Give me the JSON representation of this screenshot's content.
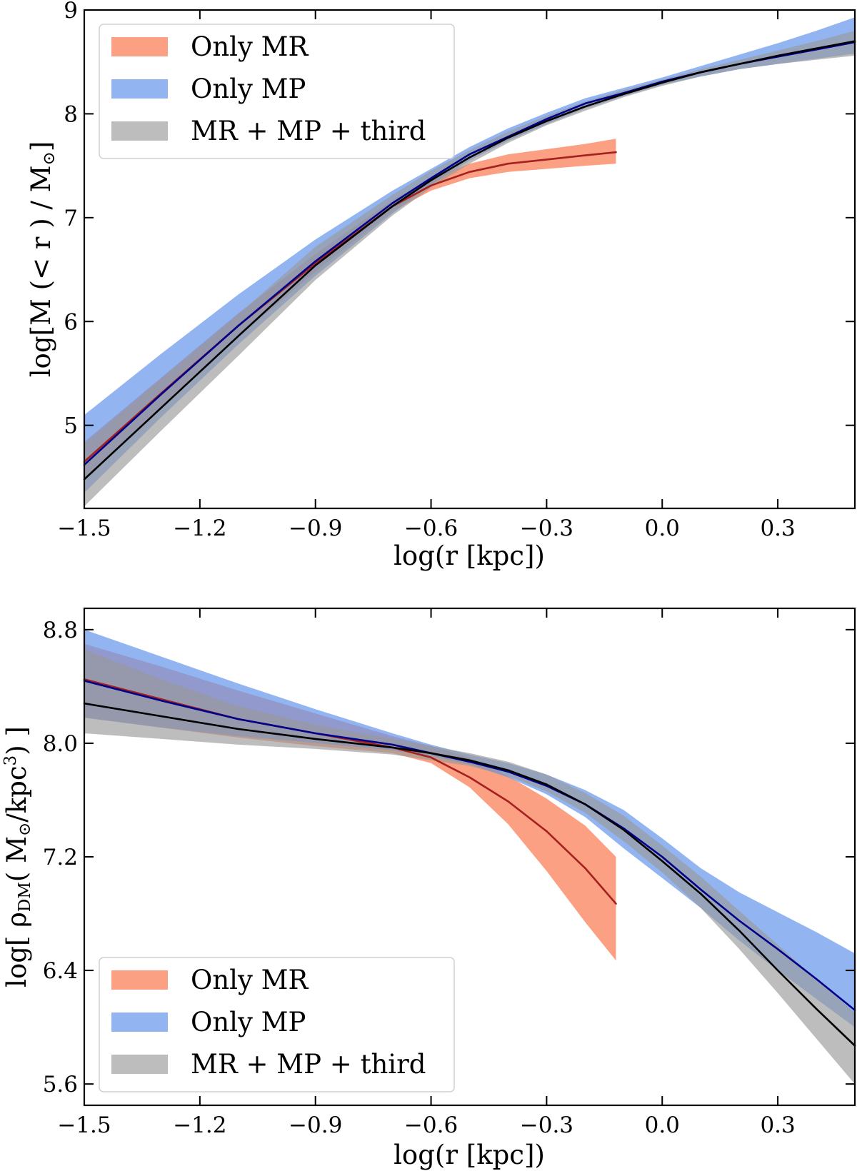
{
  "chart_data": [
    {
      "type": "area",
      "title": "",
      "xlabel": "log(r [kpc])",
      "ylabel": "log[M (< r ) / M⊙]",
      "ylabel_parts": {
        "prefix": "log[M (< r ) / M",
        "sun": "⊙",
        "suffix": "]"
      },
      "xlim": [
        -1.5,
        0.5
      ],
      "ylim": [
        4.2,
        9.0
      ],
      "x_ticks": [
        -1.5,
        -1.2,
        -0.9,
        -0.6,
        -0.3,
        0.0,
        0.3
      ],
      "x_tick_labels": [
        "−1.5",
        "−1.2",
        "−0.9",
        "−0.6",
        "−0.3",
        "0.0",
        "0.3"
      ],
      "y_ticks": [
        5,
        6,
        7,
        8,
        9
      ],
      "y_tick_labels": [
        "5",
        "6",
        "7",
        "8",
        "9"
      ],
      "legend_position": "upper-left",
      "legend": [
        "Only MR",
        "Only MP",
        "MR + MP + third"
      ],
      "series": [
        {
          "name": "Only MR",
          "band_color": "#fa8058",
          "band_alpha": 0.75,
          "line_color": "#a52020",
          "x": [
            -1.5,
            -1.3,
            -1.1,
            -0.9,
            -0.7,
            -0.6,
            -0.5,
            -0.4,
            -0.3,
            -0.2,
            -0.12
          ],
          "y": [
            4.65,
            5.31,
            5.96,
            6.56,
            7.11,
            7.31,
            7.44,
            7.52,
            7.56,
            7.6,
            7.63
          ],
          "lower": [
            4.48,
            5.17,
            5.85,
            6.48,
            7.06,
            7.26,
            7.38,
            7.44,
            7.47,
            7.5,
            7.52
          ],
          "upper": [
            4.84,
            5.46,
            6.08,
            6.65,
            7.17,
            7.38,
            7.52,
            7.61,
            7.66,
            7.71,
            7.76
          ]
        },
        {
          "name": "Only MP",
          "band_color": "#6495ed",
          "band_alpha": 0.7,
          "line_color": "#00008b",
          "x": [
            -1.5,
            -1.3,
            -1.1,
            -0.9,
            -0.7,
            -0.6,
            -0.5,
            -0.4,
            -0.3,
            -0.2,
            -0.1,
            0.0,
            0.1,
            0.2,
            0.3,
            0.4,
            0.5
          ],
          "y": [
            4.62,
            5.3,
            5.96,
            6.58,
            7.14,
            7.38,
            7.61,
            7.78,
            7.95,
            8.1,
            8.2,
            8.31,
            8.4,
            8.48,
            8.55,
            8.62,
            8.69
          ],
          "lower": [
            4.35,
            5.08,
            5.78,
            6.44,
            7.04,
            7.32,
            7.55,
            7.74,
            7.9,
            8.05,
            8.17,
            8.28,
            8.36,
            8.43,
            8.48,
            8.53,
            8.58
          ],
          "upper": [
            5.1,
            5.69,
            6.26,
            6.79,
            7.26,
            7.47,
            7.68,
            7.86,
            8.01,
            8.15,
            8.25,
            8.35,
            8.46,
            8.57,
            8.68,
            8.8,
            8.93
          ]
        },
        {
          "name": "MR + MP + third",
          "band_color": "#9a9a9a",
          "band_alpha": 0.65,
          "line_color": "#000000",
          "x": [
            -1.5,
            -1.3,
            -1.1,
            -0.9,
            -0.7,
            -0.6,
            -0.5,
            -0.4,
            -0.3,
            -0.2,
            -0.1,
            0.0,
            0.1,
            0.2,
            0.3,
            0.4,
            0.5
          ],
          "y": [
            4.48,
            5.17,
            5.86,
            6.54,
            7.11,
            7.36,
            7.58,
            7.77,
            7.93,
            8.07,
            8.19,
            8.3,
            8.4,
            8.48,
            8.56,
            8.63,
            8.7
          ],
          "lower": [
            4.22,
            4.95,
            5.67,
            6.4,
            7.02,
            7.29,
            7.52,
            7.72,
            7.89,
            8.03,
            8.16,
            8.27,
            8.36,
            8.43,
            8.48,
            8.52,
            8.56
          ],
          "upper": [
            4.82,
            5.45,
            6.07,
            6.72,
            7.22,
            7.45,
            7.65,
            7.83,
            7.98,
            8.12,
            8.23,
            8.33,
            8.43,
            8.52,
            8.61,
            8.7,
            8.8
          ]
        }
      ]
    },
    {
      "type": "area",
      "title": "",
      "xlabel": "log(r [kpc])",
      "ylabel": "log[ ρDM( M⊙/kpc3) ]",
      "ylabel_parts": {
        "prefix": "log[ ρ",
        "sub": "DM",
        "mid": "( M",
        "sun": "⊙",
        "unit": "/kpc",
        "sup": "3",
        "suffix": ") ]"
      },
      "xlim": [
        -1.5,
        0.5
      ],
      "ylim": [
        5.45,
        8.95
      ],
      "x_ticks": [
        -1.5,
        -1.2,
        -0.9,
        -0.6,
        -0.3,
        0.0,
        0.3
      ],
      "x_tick_labels": [
        "−1.5",
        "−1.2",
        "−0.9",
        "−0.6",
        "−0.3",
        "0.0",
        "0.3"
      ],
      "y_ticks": [
        5.6,
        6.4,
        7.2,
        8.0,
        8.8
      ],
      "y_tick_labels": [
        "5.6",
        "6.4",
        "7.2",
        "8.0",
        "8.8"
      ],
      "legend_position": "lower-left",
      "legend": [
        "Only MR",
        "Only MP",
        "MR + MP + third"
      ],
      "series": [
        {
          "name": "Only MR",
          "band_color": "#fa8058",
          "band_alpha": 0.75,
          "line_color": "#a52020",
          "x": [
            -1.5,
            -1.3,
            -1.1,
            -0.9,
            -0.7,
            -0.6,
            -0.5,
            -0.4,
            -0.3,
            -0.2,
            -0.12
          ],
          "y": [
            8.45,
            8.31,
            8.17,
            8.07,
            7.97,
            7.9,
            7.76,
            7.59,
            7.38,
            7.12,
            6.87
          ],
          "lower": [
            8.18,
            8.11,
            8.04,
            7.98,
            7.93,
            7.86,
            7.69,
            7.43,
            7.1,
            6.74,
            6.47
          ],
          "upper": [
            8.7,
            8.54,
            8.37,
            8.21,
            8.05,
            7.98,
            7.9,
            7.77,
            7.61,
            7.42,
            7.2
          ]
        },
        {
          "name": "Only MP",
          "band_color": "#6495ed",
          "band_alpha": 0.7,
          "line_color": "#00008b",
          "x": [
            -1.5,
            -1.3,
            -1.1,
            -0.9,
            -0.7,
            -0.6,
            -0.5,
            -0.4,
            -0.3,
            -0.2,
            -0.1,
            0.0,
            0.1,
            0.2,
            0.3,
            0.4,
            0.5
          ],
          "y": [
            8.44,
            8.3,
            8.17,
            8.07,
            7.99,
            7.93,
            7.87,
            7.8,
            7.7,
            7.57,
            7.4,
            7.2,
            6.97,
            6.75,
            6.55,
            6.34,
            6.12
          ],
          "lower": [
            8.18,
            8.11,
            8.05,
            8.0,
            7.95,
            7.91,
            7.85,
            7.76,
            7.64,
            7.48,
            7.26,
            7.05,
            6.84,
            6.61,
            6.4,
            6.2,
            6.0
          ],
          "upper": [
            8.8,
            8.61,
            8.42,
            8.24,
            8.07,
            7.99,
            7.92,
            7.86,
            7.78,
            7.67,
            7.53,
            7.33,
            7.12,
            6.95,
            6.81,
            6.67,
            6.52
          ]
        },
        {
          "name": "MR + MP + third",
          "band_color": "#9a9a9a",
          "band_alpha": 0.65,
          "line_color": "#000000",
          "x": [
            -1.5,
            -1.3,
            -1.1,
            -0.9,
            -0.7,
            -0.6,
            -0.5,
            -0.4,
            -0.3,
            -0.2,
            -0.1,
            0.0,
            0.1,
            0.2,
            0.3,
            0.4,
            0.5
          ],
          "y": [
            8.28,
            8.19,
            8.1,
            8.03,
            7.97,
            7.93,
            7.88,
            7.81,
            7.71,
            7.57,
            7.39,
            7.17,
            6.94,
            6.68,
            6.4,
            6.13,
            5.87
          ],
          "lower": [
            8.07,
            8.03,
            7.99,
            7.96,
            7.92,
            7.88,
            7.84,
            7.77,
            7.66,
            7.51,
            7.31,
            7.09,
            6.84,
            6.55,
            6.24,
            5.92,
            5.6
          ],
          "upper": [
            8.66,
            8.45,
            8.26,
            8.13,
            8.03,
            7.98,
            7.93,
            7.87,
            7.78,
            7.65,
            7.49,
            7.28,
            7.06,
            6.82,
            6.58,
            6.34,
            6.1
          ]
        }
      ]
    }
  ]
}
